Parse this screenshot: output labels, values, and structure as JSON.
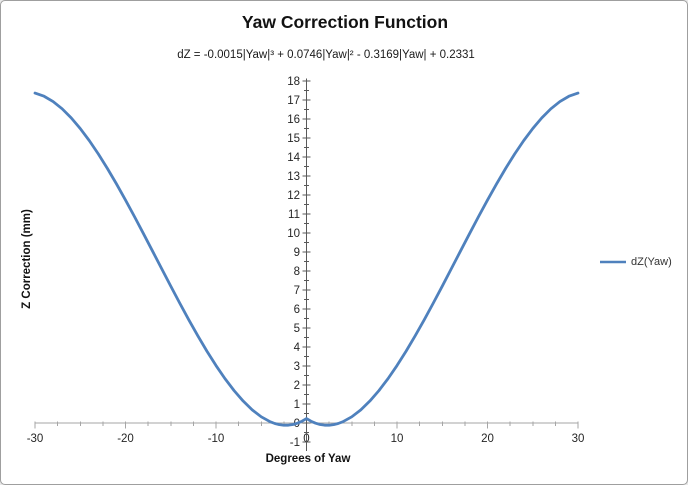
{
  "window": {
    "background": "#FFFFFF",
    "border_color": "#9F9F9F"
  },
  "chart_data": {
    "type": "line",
    "title": "Yaw Correction Function",
    "equation": "dZ = -0.0015|Yaw|³ + 0.0746|Yaw|² - 0.3169|Yaw| + 0.2331",
    "xlabel": "Degrees of Yaw",
    "ylabel": "Z Correction (mm)",
    "xlim": [
      -30,
      30
    ],
    "ylim": [
      -1,
      18
    ],
    "x_major_ticks": [
      -30,
      -20,
      -10,
      0,
      10,
      20,
      30
    ],
    "x_minor_step": 2.5,
    "y_major_ticks": [
      -1,
      0,
      1,
      2,
      3,
      4,
      5,
      6,
      7,
      8,
      9,
      10,
      11,
      12,
      13,
      14,
      15,
      16,
      17,
      18
    ],
    "y_minor_step": 0.5,
    "grid": false,
    "legend_position": "right",
    "axis_color": "#A6A6A6",
    "value_axis_color": "#595959",
    "tick_label_color": "#262626",
    "series": [
      {
        "name": "dZ(Yaw)",
        "color": "#4F81BD",
        "x": [
          -30,
          -29,
          -28,
          -27,
          -26,
          -25,
          -24,
          -23,
          -22,
          -21,
          -20,
          -19,
          -18,
          -17,
          -16,
          -15,
          -14,
          -13,
          -12,
          -11,
          -10,
          -9,
          -8,
          -7,
          -6,
          -5,
          -4,
          -3.5,
          -3,
          -2.5,
          -2,
          -1.5,
          -1,
          -0.5,
          0,
          0.5,
          1,
          1.5,
          2,
          2.5,
          3,
          3.5,
          4,
          5,
          6,
          7,
          8,
          9,
          10,
          11,
          12,
          13,
          14,
          15,
          16,
          17,
          18,
          19,
          20,
          21,
          22,
          23,
          24,
          25,
          26,
          27,
          28,
          29,
          30
        ],
        "y": [
          17.3661,
          17.1981,
          16.9183,
          16.5357,
          16.0593,
          15.4981,
          14.8611,
          14.1573,
          13.3957,
          12.5853,
          11.7351,
          10.8541,
          9.9513,
          9.0357,
          8.1163,
          7.2021,
          6.3021,
          5.4253,
          4.5807,
          3.7773,
          3.0241,
          2.3301,
          1.7043,
          1.1557,
          0.6933,
          0.3261,
          0.0631,
          -0.0265,
          -0.0867,
          -0.1163,
          -0.1143,
          -0.0795,
          -0.0107,
          0.0931,
          0.2331,
          0.0931,
          -0.0107,
          -0.0795,
          -0.1143,
          -0.1163,
          -0.0867,
          -0.0265,
          0.0631,
          0.3261,
          0.6933,
          1.1557,
          1.7043,
          2.3301,
          3.0241,
          3.7773,
          4.5807,
          5.4253,
          6.3021,
          7.2021,
          8.1163,
          9.0357,
          9.9513,
          10.8541,
          11.7351,
          12.5853,
          13.3957,
          14.1573,
          14.8611,
          15.4981,
          16.0593,
          16.5357,
          16.9183,
          17.1981,
          17.3661
        ]
      }
    ]
  }
}
